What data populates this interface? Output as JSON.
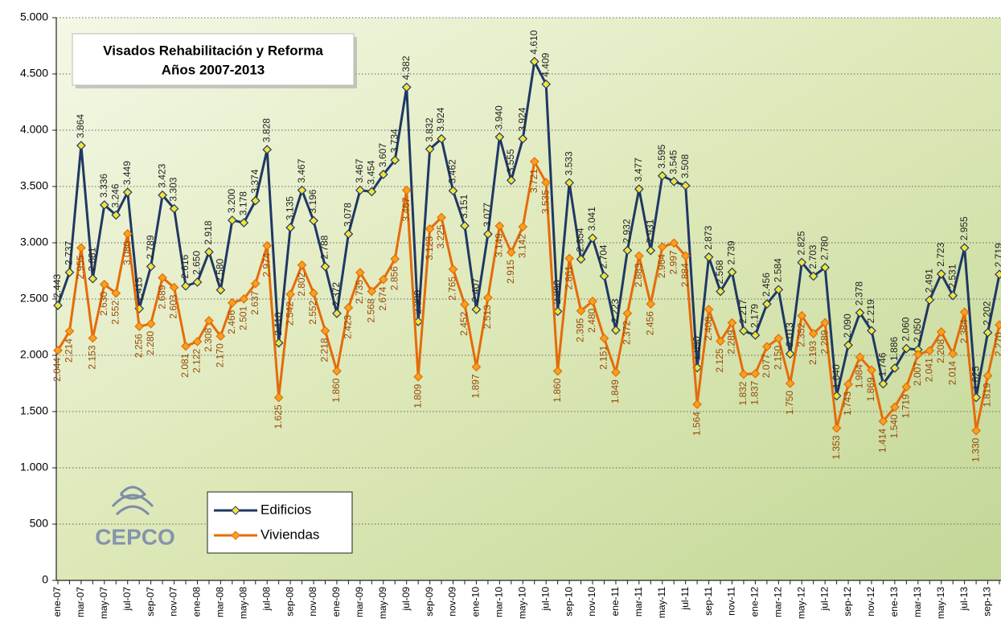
{
  "chart_data": {
    "type": "line",
    "title": "Visados Rehabilitación y Reforma",
    "subtitle": "Años 2007-2013",
    "logo_text": "CEPCO",
    "categories": [
      "ene-07",
      null,
      "mar-07",
      null,
      "may-07",
      null,
      "jul-07",
      null,
      "sep-07",
      null,
      "nov-07",
      null,
      "ene-08",
      null,
      "mar-08",
      null,
      "may-08",
      null,
      "jul-08",
      null,
      "sep-08",
      null,
      "nov-08",
      null,
      "ene-09",
      null,
      "mar-09",
      null,
      "may-09",
      null,
      "jul-09",
      null,
      "sep-09",
      null,
      "nov-09",
      null,
      "ene-10",
      null,
      "mar-10",
      null,
      "may-10",
      null,
      "jul-10",
      null,
      "sep-10",
      null,
      "nov-10",
      null,
      "ene-11",
      null,
      "mar-11",
      null,
      "may-11",
      null,
      "jul-11",
      null,
      "sep-11",
      null,
      "nov-11",
      null,
      "ene-12",
      null,
      "mar-12",
      null,
      "may-12",
      null,
      "jul-12",
      null,
      "sep-12",
      null,
      "nov-12",
      null,
      "ene-13",
      null,
      "mar-13",
      null,
      "may-13",
      null,
      "jul-13",
      null,
      "sep-13",
      null
    ],
    "series": [
      {
        "name": "Edificios",
        "color": "#1f3864",
        "marker_color": "#f2e33a",
        "label_color": "#222222",
        "values": [
          2443,
          2737,
          3864,
          2681,
          3336,
          3246,
          3449,
          2415,
          2789,
          3423,
          3303,
          2616,
          2650,
          2918,
          2580,
          3200,
          3178,
          3374,
          3828,
          2110,
          3135,
          3467,
          3196,
          2788,
          2372,
          3078,
          3467,
          3454,
          3607,
          3734,
          4382,
          2300,
          3832,
          3924,
          3462,
          3151,
          2407,
          3077,
          3940,
          3555,
          3924,
          4610,
          4409,
          2390,
          3533,
          2854,
          3041,
          2704,
          2223,
          2932,
          3477,
          2931,
          3595,
          3545,
          3508,
          1890,
          2873,
          2568,
          2739,
          2217,
          2179,
          2456,
          2584,
          2013,
          2825,
          2703,
          2780,
          1640,
          2090,
          2378,
          2219,
          1746,
          1886,
          2060,
          2050,
          2491,
          2723,
          2531,
          2955,
          1625,
          2202,
          2719
        ],
        "value_labels": [
          "2.443",
          "2.737",
          "3.864",
          "2.681",
          "3.336",
          "3.246",
          "3.449",
          "2.415",
          "2.789",
          "3.423",
          "3.303",
          "2.616",
          "2.650",
          "2.918",
          "2.580",
          "3.200",
          "3.178",
          "3.374",
          "3.828",
          "2.110",
          "3.135",
          "3.467",
          "3.196",
          "2.788",
          "2.372",
          "3.078",
          "3.467",
          "3.454",
          "3.607",
          "3.734",
          "4.382",
          "2.300",
          "3.832",
          "3.924",
          "3.462",
          "3.151",
          "2.407",
          "3.077",
          "3.940",
          "3.555",
          "3.924",
          "4.610",
          "4.409",
          "2.390",
          "3.533",
          "2.854",
          "3.041",
          "2.704",
          "2.223",
          "2.932",
          "3.477",
          "2.931",
          "3.595",
          "3.545",
          "3.508",
          "1.890",
          "2.873",
          "2.568",
          "2.739",
          "2.217",
          "2.179",
          "2.456",
          "2.584",
          "2.013",
          "2.825",
          "2.703",
          "2.780",
          "1.640",
          "2.090",
          "2.378",
          "2.219",
          "1.746",
          "1.886",
          "2.060",
          "2.050",
          "2.491",
          "2.723",
          "2.531",
          "2.955",
          "1.625",
          "2.202",
          "2.719"
        ]
      },
      {
        "name": "Viviendas",
        "color": "#e46c0a",
        "marker_color": "#f6a21e",
        "label_color": "#984806",
        "values": [
          2044,
          2214,
          2955,
          2153,
          2630,
          2552,
          3080,
          2256,
          2280,
          2689,
          2603,
          2081,
          2122,
          2308,
          2170,
          2466,
          2501,
          2637,
          2974,
          1625,
          2542,
          2802,
          2552,
          2218,
          1860,
          2423,
          2735,
          2568,
          2674,
          2856,
          3467,
          1809,
          3123,
          3225,
          2765,
          2452,
          1897,
          2513,
          3149,
          2915,
          3142,
          3721,
          3535,
          1860,
          2861,
          2395,
          2480,
          2151,
          1849,
          2372,
          2883,
          2456,
          2964,
          2997,
          2884,
          1564,
          2408,
          2125,
          2289,
          1832,
          1837,
          2077,
          2150,
          1750,
          2352,
          2193,
          2289,
          1353,
          1743,
          1984,
          1869,
          1414,
          1540,
          1719,
          2007,
          2041,
          2208,
          2014,
          2384,
          1330,
          1819,
          2270
        ],
        "value_labels": [
          "2.044",
          "2.214",
          "2.955",
          "2.153",
          "2.630",
          "2.552",
          "3.080",
          "2.256",
          "2.280",
          "2.689",
          "2.603",
          "2.081",
          "2.122",
          "2.308",
          "2.170",
          "2.466",
          "2.501",
          "2.637",
          "2.974",
          "1.625",
          "2.542",
          "2.802",
          "2.552",
          "2.218",
          "1.860",
          "2.423",
          "2.735",
          "2.568",
          "2.674",
          "2.856",
          "3.467",
          "1.809",
          "3.123",
          "3.225",
          "2.765",
          "2.452",
          "1.897",
          "2.513",
          "3.149",
          "2.915",
          "3.142",
          "3.721",
          "3.535",
          "1.860",
          "2.861",
          "2.395",
          "2.480",
          "2.151",
          "1.849",
          "2.372",
          "2.883",
          "2.456",
          "2.964",
          "2.997",
          "2.884",
          "1.564",
          "2.408",
          "2.125",
          "2.289",
          "1.832",
          "1.837",
          "2.077",
          "2.150",
          "1.750",
          "2.352",
          "2.193",
          "2.289",
          "1.353",
          "1.743",
          "1.984",
          "1.869",
          "1.414",
          "1.540",
          "1.719",
          "2.007",
          "2.041",
          "2.208",
          "2.014",
          "2.384",
          "1.330",
          "1.819",
          "2.270"
        ]
      }
    ],
    "ylim": [
      0,
      5000
    ],
    "yticks": [
      0,
      500,
      {
        "value": 1000,
        "label": "1.000"
      },
      {
        "value": 1500,
        "label": "1.500"
      },
      {
        "value": 2000,
        "label": "2.000"
      },
      {
        "value": 2500,
        "label": "2.500"
      },
      {
        "value": 3000,
        "label": "3.000"
      },
      {
        "value": 3500,
        "label": "3.500"
      },
      {
        "value": 4000,
        "label": "4.000"
      },
      {
        "value": 4500,
        "label": "4.500"
      },
      {
        "value": 5000,
        "label": "5.000"
      }
    ],
    "grid": true
  }
}
